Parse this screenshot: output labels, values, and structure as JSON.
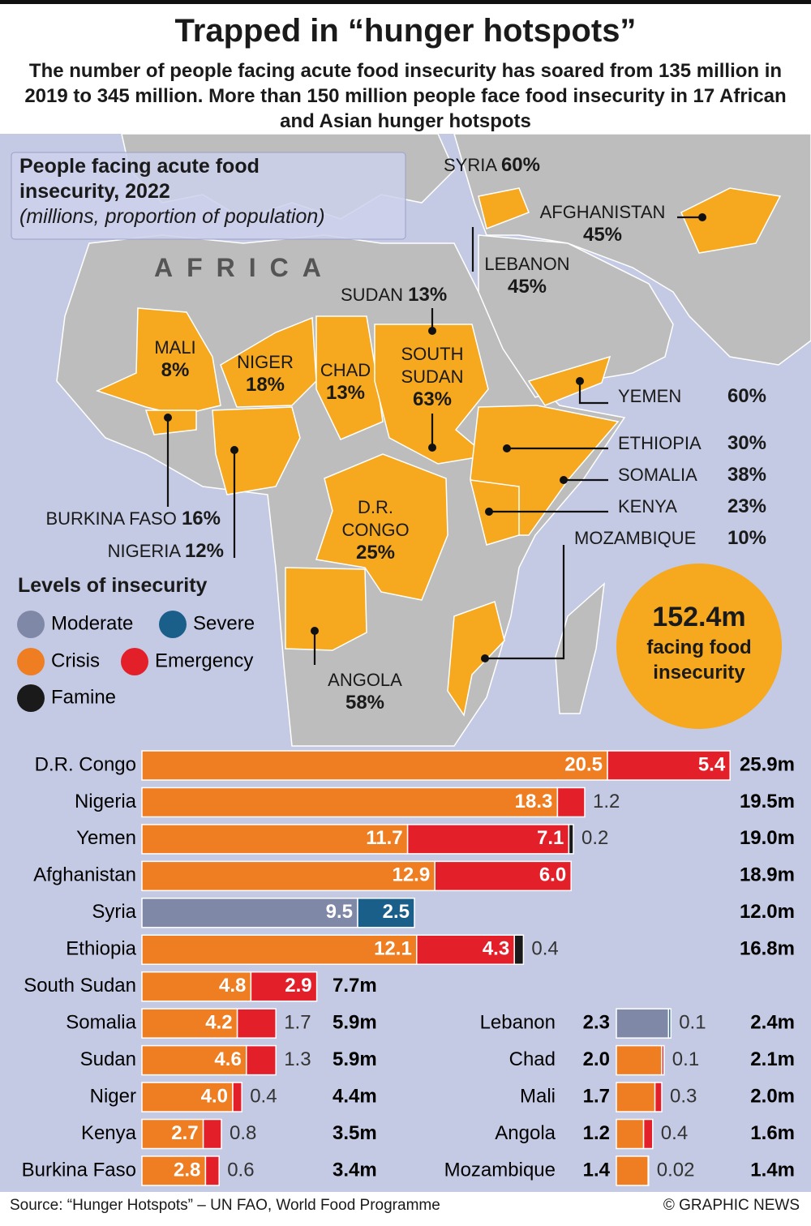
{
  "header": {
    "title": "Trapped in “hunger hotspots”",
    "subtitle": "The number of people facing acute food insecurity has soared from 135 million in 2019 to 345 million. More than 150 million people face food insecurity in 17 African and Asian hunger hotspots"
  },
  "map": {
    "box_title": "People facing acute food insecurity, 2022",
    "box_note": "(millions, proportion of population)",
    "region": "AFRICA",
    "countries": [
      {
        "name": "SYRIA",
        "share": "60%"
      },
      {
        "name": "AFGHANISTAN",
        "share": "45%"
      },
      {
        "name": "LEBANON",
        "share": "45%"
      },
      {
        "name": "SUDAN",
        "share": "13%"
      },
      {
        "name": "MALI",
        "share": "8%"
      },
      {
        "name": "NIGER",
        "share": "18%"
      },
      {
        "name": "CHAD",
        "share": "13%"
      },
      {
        "name": "SOUTH SUDAN",
        "share": "63%"
      },
      {
        "name": "YEMEN",
        "share": "60%"
      },
      {
        "name": "ETHIOPIA",
        "share": "30%"
      },
      {
        "name": "SOMALIA",
        "share": "38%"
      },
      {
        "name": "KENYA",
        "share": "23%"
      },
      {
        "name": "MOZAMBIQUE",
        "share": "10%"
      },
      {
        "name": "BURKINA FASO",
        "share": "16%"
      },
      {
        "name": "NIGERIA",
        "share": "12%"
      },
      {
        "name": "D.R. CONGO",
        "share": "25%"
      },
      {
        "name": "ANGOLA",
        "share": "58%"
      }
    ],
    "total": "152.4m",
    "total_note": "facing food insecurity"
  },
  "chart_data": {
    "type": "bar",
    "orientation": "horizontal",
    "stacked": true,
    "legend_title": "Levels of insecurity",
    "categories": [
      "D.R. Congo",
      "Nigeria",
      "Yemen",
      "Afghanistan",
      "Syria",
      "Ethiopia",
      "South Sudan",
      "Somalia",
      "Sudan",
      "Niger",
      "Kenya",
      "Burkina Faso",
      "Lebanon",
      "Chad",
      "Mali",
      "Angola",
      "Mozambique"
    ],
    "series": [
      {
        "name": "Moderate",
        "color": "#8088a8",
        "values": [
          null,
          null,
          null,
          null,
          9.5,
          null,
          null,
          null,
          null,
          null,
          null,
          null,
          2.3,
          null,
          null,
          null,
          null
        ]
      },
      {
        "name": "Severe",
        "color": "#1a5f8a",
        "values": [
          null,
          null,
          null,
          null,
          2.5,
          null,
          null,
          null,
          null,
          null,
          null,
          null,
          0.1,
          null,
          null,
          null,
          null
        ]
      },
      {
        "name": "Crisis",
        "color": "#ef7d22",
        "values": [
          20.5,
          18.3,
          11.7,
          12.9,
          null,
          12.1,
          4.8,
          4.2,
          4.6,
          4.0,
          2.7,
          2.8,
          null,
          2.0,
          1.7,
          1.2,
          1.4
        ],
        "value_labels": [
          "20.5",
          "18.3",
          "11.7",
          "12.9",
          null,
          "12.1",
          "4.8",
          "4.2",
          "4.6",
          "4.0",
          "2.7",
          "2.8",
          null,
          "2.0",
          "1.7",
          "1.2",
          "1.4"
        ]
      },
      {
        "name": "Emergency",
        "color": "#e3202a",
        "values": [
          5.4,
          1.2,
          7.1,
          6.0,
          null,
          4.3,
          2.9,
          1.7,
          1.3,
          0.4,
          0.8,
          0.6,
          null,
          0.1,
          0.3,
          0.4,
          0.02
        ],
        "value_labels": [
          "5.4",
          "1.2",
          "7.1",
          "6.0",
          null,
          "4.3",
          "2.9",
          "1.7",
          "1.3",
          "0.4",
          "0.8",
          "0.6",
          null,
          "0.1",
          "0.3",
          "0.4",
          "0.02"
        ]
      },
      {
        "name": "Famine",
        "color": "#1a1a1a",
        "values": [
          null,
          null,
          0.2,
          null,
          null,
          0.4,
          null,
          null,
          null,
          null,
          null,
          null,
          null,
          null,
          null,
          null,
          null
        ]
      }
    ],
    "totals": [
      "25.9m",
      "19.5m",
      "19.0m",
      "18.9m",
      "12.0m",
      "16.8m",
      "7.7m",
      "5.9m",
      "5.9m",
      "4.4m",
      "3.5m",
      "3.4m",
      "2.4m",
      "2.1m",
      "2.0m",
      "1.6m",
      "1.4m"
    ]
  },
  "footer": {
    "source": "Source: “Hunger Hotspots” – UN FAO, World Food Programme",
    "credit": "© GRAPHIC NEWS"
  }
}
